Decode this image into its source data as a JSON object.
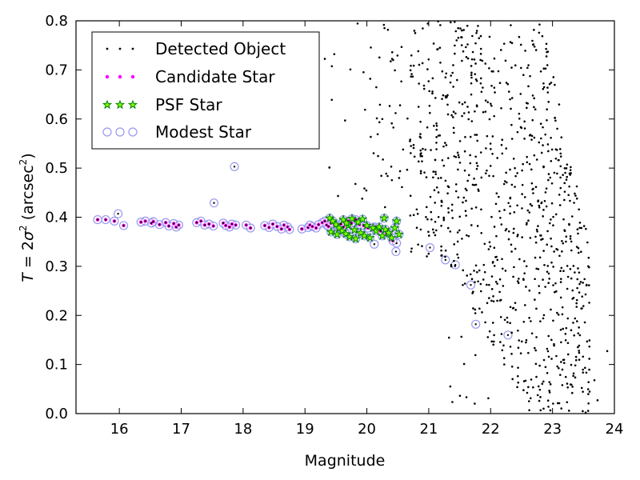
{
  "chart_data": {
    "type": "scatter",
    "xlabel": "Magnitude",
    "ylabel_parts": {
      "var": "T",
      "eq": " = 2",
      "sigma": "σ",
      "sup": "2",
      "unit": " (arcsec",
      "unit_sup": "2",
      "close": ")"
    },
    "xlim": [
      15.3,
      24.0
    ],
    "ylim": [
      0.0,
      0.8
    ],
    "x_ticks": [
      "16",
      "17",
      "18",
      "19",
      "20",
      "21",
      "22",
      "23",
      "24"
    ],
    "y_ticks": [
      "0.0",
      "0.1",
      "0.2",
      "0.3",
      "0.4",
      "0.5",
      "0.6",
      "0.7",
      "0.8"
    ],
    "grid": false,
    "legend_position": "top-left",
    "colors": {
      "detected": "#000000",
      "candidate": "#ff00ff",
      "psf": "#008000",
      "psf_fill": "#7fff00",
      "modest": "#9999ee"
    },
    "series": [
      {
        "name": "Detected Object",
        "marker": "dot"
      },
      {
        "name": "Candidate Star",
        "marker": "small-circle"
      },
      {
        "name": "PSF Star",
        "marker": "star"
      },
      {
        "name": "Modest Star",
        "marker": "open-circle"
      }
    ],
    "stars": {
      "points": [
        [
          15.65,
          0.395
        ],
        [
          15.78,
          0.395
        ],
        [
          15.92,
          0.392
        ],
        [
          16.07,
          0.383
        ],
        [
          16.35,
          0.39
        ],
        [
          16.42,
          0.392
        ],
        [
          16.52,
          0.388
        ],
        [
          16.55,
          0.391
        ],
        [
          16.65,
          0.385
        ],
        [
          16.75,
          0.389
        ],
        [
          16.8,
          0.382
        ],
        [
          16.88,
          0.387
        ],
        [
          16.92,
          0.38
        ],
        [
          16.96,
          0.384
        ],
        [
          17.25,
          0.389
        ],
        [
          17.32,
          0.392
        ],
        [
          17.38,
          0.384
        ],
        [
          17.45,
          0.386
        ],
        [
          17.52,
          0.382
        ],
        [
          17.68,
          0.388
        ],
        [
          17.72,
          0.383
        ],
        [
          17.78,
          0.38
        ],
        [
          17.82,
          0.386
        ],
        [
          17.88,
          0.384
        ],
        [
          18.05,
          0.384
        ],
        [
          18.12,
          0.378
        ],
        [
          18.35,
          0.383
        ],
        [
          18.42,
          0.379
        ],
        [
          18.48,
          0.386
        ],
        [
          18.55,
          0.381
        ],
        [
          18.62,
          0.376
        ],
        [
          18.66,
          0.384
        ],
        [
          18.72,
          0.38
        ],
        [
          18.75,
          0.375
        ],
        [
          18.95,
          0.376
        ],
        [
          19.05,
          0.379
        ],
        [
          19.08,
          0.384
        ],
        [
          19.12,
          0.381
        ],
        [
          19.18,
          0.378
        ],
        [
          19.22,
          0.385
        ],
        [
          19.28,
          0.389
        ],
        [
          19.32,
          0.392
        ],
        [
          19.35,
          0.384
        ],
        [
          19.38,
          0.381
        ],
        [
          19.42,
          0.388
        ],
        [
          19.48,
          0.383
        ],
        [
          19.58,
          0.386
        ],
        [
          19.62,
          0.38
        ],
        [
          19.7,
          0.392
        ],
        [
          19.75,
          0.388
        ],
        [
          19.82,
          0.395
        ],
        [
          19.88,
          0.385
        ],
        [
          19.95,
          0.383
        ],
        [
          20.02,
          0.378
        ],
        [
          20.12,
          0.38
        ],
        [
          20.22,
          0.372
        ],
        [
          20.32,
          0.368
        ],
        [
          20.42,
          0.352
        ]
      ],
      "psf_points": [
        [
          19.4,
          0.398
        ],
        [
          19.45,
          0.392
        ],
        [
          19.5,
          0.385
        ],
        [
          19.55,
          0.378
        ],
        [
          19.6,
          0.372
        ],
        [
          19.62,
          0.395
        ],
        [
          19.66,
          0.366
        ],
        [
          19.7,
          0.383
        ],
        [
          19.72,
          0.36
        ],
        [
          19.76,
          0.397
        ],
        [
          19.8,
          0.374
        ],
        [
          19.82,
          0.356
        ],
        [
          19.86,
          0.39
        ],
        [
          19.9,
          0.368
        ],
        [
          19.93,
          0.396
        ],
        [
          19.96,
          0.362
        ],
        [
          20.0,
          0.383
        ],
        [
          20.05,
          0.358
        ],
        [
          20.1,
          0.378
        ],
        [
          20.15,
          0.372
        ],
        [
          20.2,
          0.38
        ],
        [
          20.25,
          0.362
        ],
        [
          20.3,
          0.375
        ],
        [
          20.35,
          0.368
        ],
        [
          20.4,
          0.358
        ],
        [
          20.45,
          0.378
        ],
        [
          20.48,
          0.392
        ],
        [
          20.52,
          0.365
        ],
        [
          20.28,
          0.398
        ],
        [
          19.52,
          0.365
        ],
        [
          19.42,
          0.37
        ],
        [
          19.67,
          0.388
        ]
      ],
      "modest_only": [
        [
          15.98,
          0.407
        ],
        [
          17.53,
          0.429
        ],
        [
          17.86,
          0.503
        ],
        [
          20.12,
          0.345
        ],
        [
          20.47,
          0.33
        ],
        [
          20.48,
          0.347
        ],
        [
          21.02,
          0.338
        ],
        [
          21.27,
          0.313
        ],
        [
          21.43,
          0.303
        ],
        [
          21.68,
          0.262
        ],
        [
          21.76,
          0.182
        ],
        [
          22.28,
          0.16
        ]
      ]
    }
  }
}
